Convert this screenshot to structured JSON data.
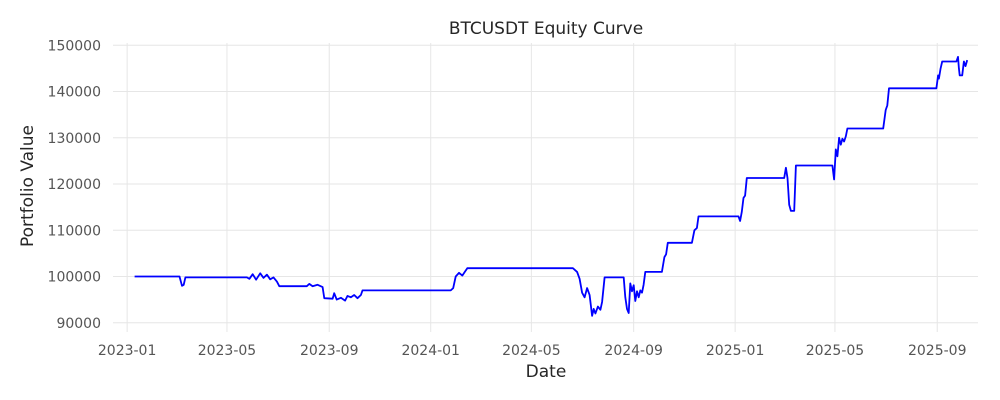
{
  "chart_data": {
    "type": "line",
    "title": "BTCUSDT Equity Curve",
    "xlabel": "Date",
    "ylabel": "Portfolio Value",
    "grid": true,
    "x_ticks": [
      "2023-01",
      "2023-05",
      "2023-09",
      "2024-01",
      "2024-05",
      "2024-09",
      "2025-01",
      "2025-05",
      "2025-09"
    ],
    "y_ticks": [
      90000,
      100000,
      110000,
      120000,
      130000,
      140000,
      150000
    ],
    "xlim": [
      "2022-12-15",
      "2025-10-20"
    ],
    "ylim": [
      88000,
      150500
    ],
    "series": [
      {
        "color": "#0000ff",
        "points": [
          [
            "2023-01-10",
            100000
          ],
          [
            "2023-03-05",
            100000
          ],
          [
            "2023-03-08",
            98000
          ],
          [
            "2023-03-10",
            98200
          ],
          [
            "2023-03-12",
            99800
          ],
          [
            "2023-05-25",
            99800
          ],
          [
            "2023-05-28",
            99500
          ],
          [
            "2023-06-01",
            100500
          ],
          [
            "2023-06-05",
            99300
          ],
          [
            "2023-06-10",
            100700
          ],
          [
            "2023-06-14",
            99700
          ],
          [
            "2023-06-18",
            100400
          ],
          [
            "2023-06-22",
            99400
          ],
          [
            "2023-06-26",
            99800
          ],
          [
            "2023-06-30",
            98900
          ],
          [
            "2023-07-03",
            97900
          ],
          [
            "2023-08-05",
            97900
          ],
          [
            "2023-08-08",
            98400
          ],
          [
            "2023-08-12",
            97900
          ],
          [
            "2023-08-18",
            98200
          ],
          [
            "2023-08-24",
            97700
          ],
          [
            "2023-08-26",
            95300
          ],
          [
            "2023-09-05",
            95200
          ],
          [
            "2023-09-07",
            96400
          ],
          [
            "2023-09-10",
            95000
          ],
          [
            "2023-09-15",
            95400
          ],
          [
            "2023-09-20",
            94800
          ],
          [
            "2023-09-23",
            95800
          ],
          [
            "2023-09-27",
            95500
          ],
          [
            "2023-10-01",
            96000
          ],
          [
            "2023-10-05",
            95300
          ],
          [
            "2023-10-09",
            96000
          ],
          [
            "2023-10-11",
            97000
          ],
          [
            "2024-01-25",
            97000
          ],
          [
            "2024-01-28",
            97500
          ],
          [
            "2024-01-31",
            100000
          ],
          [
            "2024-02-04",
            100800
          ],
          [
            "2024-02-08",
            100200
          ],
          [
            "2024-02-11",
            101000
          ],
          [
            "2024-02-14",
            101800
          ],
          [
            "2024-06-20",
            101800
          ],
          [
            "2024-06-25",
            101000
          ],
          [
            "2024-06-28",
            99500
          ],
          [
            "2024-07-01",
            96500
          ],
          [
            "2024-07-04",
            95500
          ],
          [
            "2024-07-07",
            97500
          ],
          [
            "2024-07-10",
            96000
          ],
          [
            "2024-07-13",
            91500
          ],
          [
            "2024-07-15",
            93000
          ],
          [
            "2024-07-17",
            92000
          ],
          [
            "2024-07-20",
            93500
          ],
          [
            "2024-07-23",
            92800
          ],
          [
            "2024-07-25",
            94500
          ],
          [
            "2024-07-28",
            99800
          ],
          [
            "2024-08-20",
            99800
          ],
          [
            "2024-08-22",
            95500
          ],
          [
            "2024-08-24",
            93000
          ],
          [
            "2024-08-26",
            92100
          ],
          [
            "2024-08-28",
            98500
          ],
          [
            "2024-08-30",
            96800
          ],
          [
            "2024-09-01",
            98100
          ],
          [
            "2024-09-03",
            94700
          ],
          [
            "2024-09-05",
            96800
          ],
          [
            "2024-09-07",
            95500
          ],
          [
            "2024-09-09",
            97000
          ],
          [
            "2024-09-11",
            96500
          ],
          [
            "2024-09-13",
            98200
          ],
          [
            "2024-09-15",
            101000
          ],
          [
            "2024-10-05",
            101000
          ],
          [
            "2024-10-08",
            104200
          ],
          [
            "2024-10-10",
            104800
          ],
          [
            "2024-10-12",
            107300
          ],
          [
            "2024-11-10",
            107300
          ],
          [
            "2024-11-13",
            110000
          ],
          [
            "2024-11-16",
            110500
          ],
          [
            "2024-11-18",
            113000
          ],
          [
            "2025-01-05",
            113000
          ],
          [
            "2025-01-07",
            112000
          ],
          [
            "2025-01-09",
            114000
          ],
          [
            "2025-01-11",
            117000
          ],
          [
            "2025-01-13",
            117500
          ],
          [
            "2025-01-15",
            121300
          ],
          [
            "2025-03-01",
            121300
          ],
          [
            "2025-03-03",
            123500
          ],
          [
            "2025-03-05",
            121300
          ],
          [
            "2025-03-07",
            115500
          ],
          [
            "2025-03-09",
            114200
          ],
          [
            "2025-03-13",
            114200
          ],
          [
            "2025-03-15",
            124000
          ],
          [
            "2025-04-28",
            124000
          ],
          [
            "2025-04-30",
            121000
          ],
          [
            "2025-05-02",
            127500
          ],
          [
            "2025-05-04",
            126000
          ],
          [
            "2025-05-06",
            130000
          ],
          [
            "2025-05-08",
            128500
          ],
          [
            "2025-05-10",
            129800
          ],
          [
            "2025-05-12",
            129200
          ],
          [
            "2025-05-14",
            130300
          ],
          [
            "2025-05-16",
            132000
          ],
          [
            "2025-06-28",
            132000
          ],
          [
            "2025-07-01",
            136000
          ],
          [
            "2025-07-03",
            137000
          ],
          [
            "2025-07-05",
            140700
          ],
          [
            "2025-08-31",
            140700
          ],
          [
            "2025-09-02",
            143500
          ],
          [
            "2025-09-03",
            142800
          ],
          [
            "2025-09-05",
            145000
          ],
          [
            "2025-09-07",
            146500
          ],
          [
            "2025-09-24",
            146500
          ],
          [
            "2025-09-26",
            147500
          ],
          [
            "2025-09-27",
            145000
          ],
          [
            "2025-09-28",
            143500
          ],
          [
            "2025-10-01",
            143500
          ],
          [
            "2025-10-03",
            146500
          ],
          [
            "2025-10-05",
            145500
          ],
          [
            "2025-10-07",
            146800
          ]
        ]
      }
    ]
  }
}
